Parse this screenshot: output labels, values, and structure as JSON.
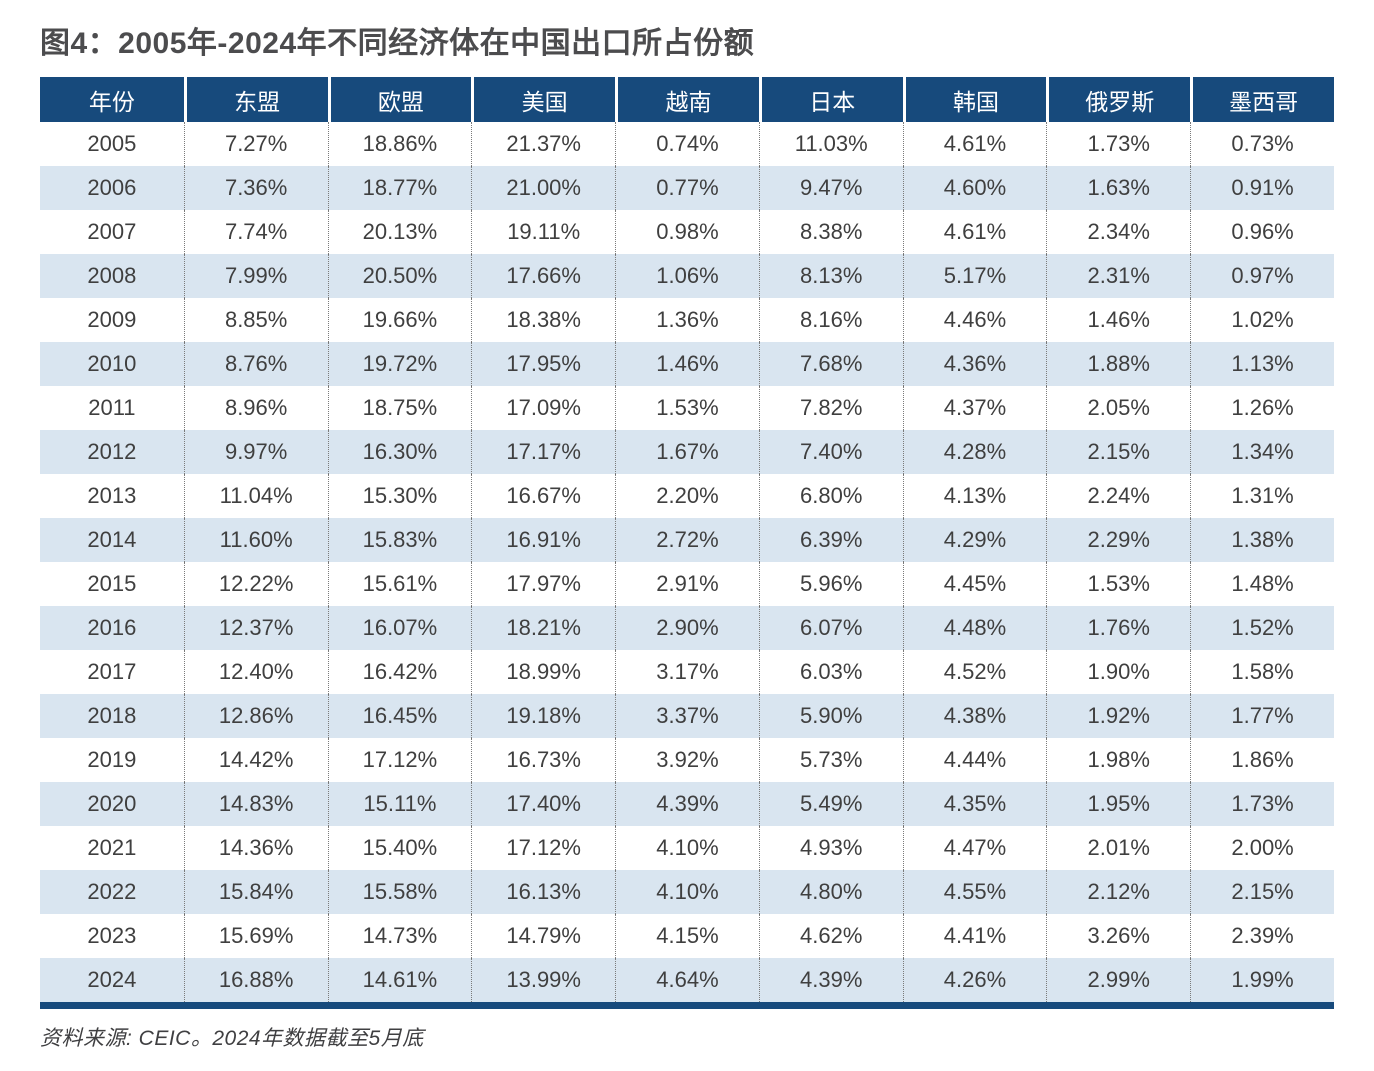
{
  "title": "图4：2005年-2024年不同经济体在中国出口所占份额",
  "source": "资料来源: CEIC。2024年数据截至5月底",
  "colors": {
    "header_bg": "#174a7c",
    "header_text": "#ffffff",
    "row_alt_bg": "#d9e5f0",
    "row_bg": "#ffffff",
    "body_text": "#3f3f3f",
    "title_text": "#4c4c4e",
    "bottom_rule": "#174a7c"
  },
  "chart_data": {
    "type": "table",
    "title": "图4：2005年-2024年不同经济体在中国出口所占份额",
    "source": "资料来源: CEIC。2024年数据截至5月底",
    "columns": [
      "年份",
      "东盟",
      "欧盟",
      "美国",
      "越南",
      "日本",
      "韩国",
      "俄罗斯",
      "墨西哥"
    ],
    "rows": [
      [
        "2005",
        "7.27%",
        "18.86%",
        "21.37%",
        "0.74%",
        "11.03%",
        "4.61%",
        "1.73%",
        "0.73%"
      ],
      [
        "2006",
        "7.36%",
        "18.77%",
        "21.00%",
        "0.77%",
        "9.47%",
        "4.60%",
        "1.63%",
        "0.91%"
      ],
      [
        "2007",
        "7.74%",
        "20.13%",
        "19.11%",
        "0.98%",
        "8.38%",
        "4.61%",
        "2.34%",
        "0.96%"
      ],
      [
        "2008",
        "7.99%",
        "20.50%",
        "17.66%",
        "1.06%",
        "8.13%",
        "5.17%",
        "2.31%",
        "0.97%"
      ],
      [
        "2009",
        "8.85%",
        "19.66%",
        "18.38%",
        "1.36%",
        "8.16%",
        "4.46%",
        "1.46%",
        "1.02%"
      ],
      [
        "2010",
        "8.76%",
        "19.72%",
        "17.95%",
        "1.46%",
        "7.68%",
        "4.36%",
        "1.88%",
        "1.13%"
      ],
      [
        "2011",
        "8.96%",
        "18.75%",
        "17.09%",
        "1.53%",
        "7.82%",
        "4.37%",
        "2.05%",
        "1.26%"
      ],
      [
        "2012",
        "9.97%",
        "16.30%",
        "17.17%",
        "1.67%",
        "7.40%",
        "4.28%",
        "2.15%",
        "1.34%"
      ],
      [
        "2013",
        "11.04%",
        "15.30%",
        "16.67%",
        "2.20%",
        "6.80%",
        "4.13%",
        "2.24%",
        "1.31%"
      ],
      [
        "2014",
        "11.60%",
        "15.83%",
        "16.91%",
        "2.72%",
        "6.39%",
        "4.29%",
        "2.29%",
        "1.38%"
      ],
      [
        "2015",
        "12.22%",
        "15.61%",
        "17.97%",
        "2.91%",
        "5.96%",
        "4.45%",
        "1.53%",
        "1.48%"
      ],
      [
        "2016",
        "12.37%",
        "16.07%",
        "18.21%",
        "2.90%",
        "6.07%",
        "4.48%",
        "1.76%",
        "1.52%"
      ],
      [
        "2017",
        "12.40%",
        "16.42%",
        "18.99%",
        "3.17%",
        "6.03%",
        "4.52%",
        "1.90%",
        "1.58%"
      ],
      [
        "2018",
        "12.86%",
        "16.45%",
        "19.18%",
        "3.37%",
        "5.90%",
        "4.38%",
        "1.92%",
        "1.77%"
      ],
      [
        "2019",
        "14.42%",
        "17.12%",
        "16.73%",
        "3.92%",
        "5.73%",
        "4.44%",
        "1.98%",
        "1.86%"
      ],
      [
        "2020",
        "14.83%",
        "15.11%",
        "17.40%",
        "4.39%",
        "5.49%",
        "4.35%",
        "1.95%",
        "1.73%"
      ],
      [
        "2021",
        "14.36%",
        "15.40%",
        "17.12%",
        "4.10%",
        "4.93%",
        "4.47%",
        "2.01%",
        "2.00%"
      ],
      [
        "2022",
        "15.84%",
        "15.58%",
        "16.13%",
        "4.10%",
        "4.80%",
        "4.55%",
        "2.12%",
        "2.15%"
      ],
      [
        "2023",
        "15.69%",
        "14.73%",
        "14.79%",
        "4.15%",
        "4.62%",
        "4.41%",
        "3.26%",
        "2.39%"
      ],
      [
        "2024",
        "16.88%",
        "14.61%",
        "13.99%",
        "4.64%",
        "4.39%",
        "4.26%",
        "2.99%",
        "1.99%"
      ]
    ]
  }
}
